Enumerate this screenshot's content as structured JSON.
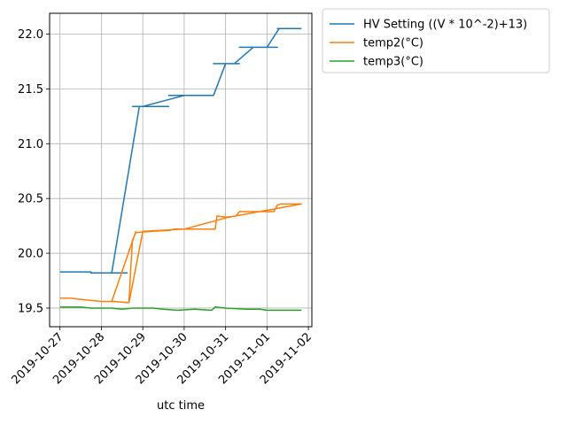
{
  "chart_data": {
    "type": "line",
    "title": "",
    "xlabel": "utc time",
    "ylabel": "",
    "x_ticks": [
      "2019-10-27",
      "2019-10-28",
      "2019-10-29",
      "2019-10-30",
      "2019-10-31",
      "2019-11-01",
      "2019-11-02"
    ],
    "y_ticks": [
      "19.5",
      "20.0",
      "20.5",
      "21.0",
      "21.5",
      "22.0"
    ],
    "xlim": [
      "2019-10-26 18:00",
      "2019-11-02 02:00"
    ],
    "ylim": [
      19.33,
      22.19
    ],
    "grid": true,
    "legend_position": "outside-top-right",
    "series": [
      {
        "name": "HV Setting ((V * 10^-2)+13)",
        "color": "#1f77b4",
        "points": [
          [
            "2019-10-27 00:00",
            19.83
          ],
          [
            "2019-10-27 18:00",
            19.83
          ],
          [
            "2019-10-27 18:00",
            19.82
          ],
          [
            "2019-10-28 15:00",
            19.82
          ],
          [
            "2019-10-28 06:00",
            19.82
          ],
          [
            "2019-10-28 22:00",
            21.34
          ],
          [
            "2019-10-28 18:00",
            21.34
          ],
          [
            "2019-10-29 15:00",
            21.34
          ],
          [
            "2019-10-29 00:00",
            21.34
          ],
          [
            "2019-10-30 00:00",
            21.44
          ],
          [
            "2019-10-29 15:00",
            21.44
          ],
          [
            "2019-10-30 17:00",
            21.44
          ],
          [
            "2019-10-30 17:00",
            21.44
          ],
          [
            "2019-10-31 00:00",
            21.73
          ],
          [
            "2019-10-30 17:00",
            21.73
          ],
          [
            "2019-10-31 08:00",
            21.73
          ],
          [
            "2019-10-31 05:00",
            21.73
          ],
          [
            "2019-10-31 16:00",
            21.88
          ],
          [
            "2019-10-31 08:00",
            21.88
          ],
          [
            "2019-11-01 06:00",
            21.88
          ],
          [
            "2019-11-01 00:00",
            21.88
          ],
          [
            "2019-11-01 07:00",
            22.05
          ],
          [
            "2019-11-01 06:00",
            22.05
          ],
          [
            "2019-11-01 20:00",
            22.05
          ]
        ]
      },
      {
        "name": "temp2(°C)",
        "color": "#ff7f0e",
        "points": [
          [
            "2019-10-27 00:00",
            19.59
          ],
          [
            "2019-10-27 06:00",
            19.59
          ],
          [
            "2019-10-27 12:00",
            19.58
          ],
          [
            "2019-10-27 18:00",
            19.57
          ],
          [
            "2019-10-28 00:00",
            19.56
          ],
          [
            "2019-10-28 08:00",
            19.56
          ],
          [
            "2019-10-28 14:00",
            19.55
          ],
          [
            "2019-10-28 16:00",
            19.55
          ],
          [
            "2019-10-28 17:00",
            19.85
          ],
          [
            "2019-10-28 18:00",
            20.12
          ],
          [
            "2019-10-28 20:00",
            20.19
          ],
          [
            "2019-10-29 06:00",
            20.2
          ],
          [
            "2019-10-29 16:00",
            20.21
          ],
          [
            "2019-10-29 18:00",
            20.22
          ],
          [
            "2019-10-30 06:00",
            20.22
          ],
          [
            "2019-10-30 18:00",
            20.22
          ],
          [
            "2019-10-30 19:00",
            20.34
          ],
          [
            "2019-10-31 00:00",
            20.33
          ],
          [
            "2019-10-31 06:00",
            20.34
          ],
          [
            "2019-10-31 08:00",
            20.38
          ],
          [
            "2019-11-01 00:00",
            20.38
          ],
          [
            "2019-11-01 04:00",
            20.38
          ],
          [
            "2019-11-01 06:00",
            20.44
          ],
          [
            "2019-11-01 08:00",
            20.45
          ],
          [
            "2019-11-01 20:00",
            20.45
          ],
          [
            "2019-10-31 02:00",
            20.33
          ],
          [
            "2019-10-30 00:00",
            20.22
          ],
          [
            "2019-10-29 00:00",
            20.2
          ],
          [
            "2019-10-28 16:00",
            19.55
          ],
          [
            "2019-10-28 06:00",
            19.56
          ],
          [
            "2019-10-28 20:00",
            20.2
          ]
        ]
      },
      {
        "name": "temp3(°C)",
        "color": "#2ca02c",
        "points": [
          [
            "2019-10-27 00:00",
            19.51
          ],
          [
            "2019-10-27 12:00",
            19.51
          ],
          [
            "2019-10-27 18:00",
            19.5
          ],
          [
            "2019-10-28 06:00",
            19.5
          ],
          [
            "2019-10-28 12:00",
            19.49
          ],
          [
            "2019-10-28 18:00",
            19.5
          ],
          [
            "2019-10-29 06:00",
            19.5
          ],
          [
            "2019-10-29 12:00",
            19.49
          ],
          [
            "2019-10-29 20:00",
            19.48
          ],
          [
            "2019-10-30 06:00",
            19.49
          ],
          [
            "2019-10-30 16:00",
            19.48
          ],
          [
            "2019-10-30 18:00",
            19.51
          ],
          [
            "2019-10-31 00:00",
            19.5
          ],
          [
            "2019-10-31 12:00",
            19.49
          ],
          [
            "2019-10-31 20:00",
            19.49
          ],
          [
            "2019-11-01 00:00",
            19.48
          ],
          [
            "2019-11-01 12:00",
            19.48
          ],
          [
            "2019-11-01 20:00",
            19.48
          ]
        ]
      }
    ]
  }
}
